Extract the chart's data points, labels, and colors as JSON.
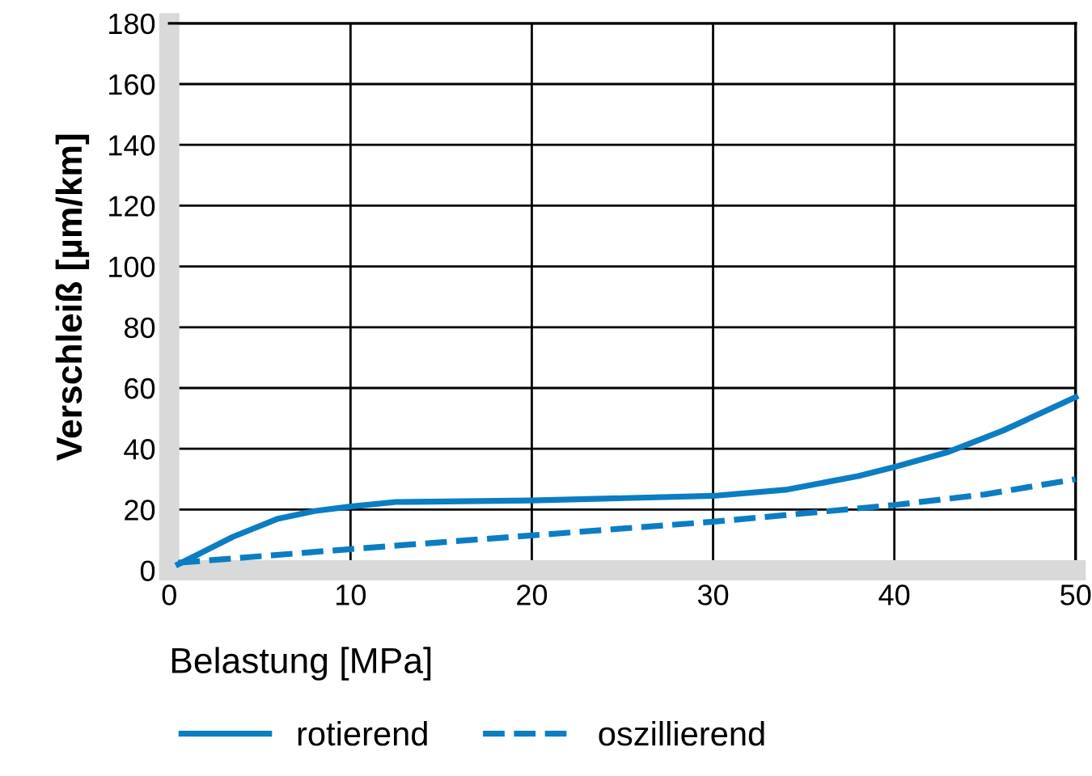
{
  "chart_data": {
    "type": "line",
    "xlabel": "Belastung [MPa]",
    "ylabel": "Verschleiß [µm/km]",
    "xlim": [
      0,
      50
    ],
    "ylim": [
      0,
      180
    ],
    "xticks": [
      0,
      10,
      20,
      30,
      40,
      50
    ],
    "yticks": [
      0,
      20,
      40,
      60,
      80,
      100,
      120,
      140,
      160,
      180
    ],
    "grid": true,
    "legend": "bottom",
    "marker": "none",
    "series": [
      {
        "name": "rotierend",
        "color": "#0b7dc3",
        "line_style": "solid",
        "x": [
          0.5,
          3.5,
          6,
          8,
          10,
          12.5,
          20,
          30,
          34,
          38,
          40,
          43,
          46,
          50
        ],
        "values": [
          2,
          11,
          17,
          19.5,
          21,
          22.5,
          23,
          24.5,
          26.5,
          31,
          34,
          39,
          46,
          57
        ]
      },
      {
        "name": "oszillierend",
        "color": "#0b7dc3",
        "line_style": "dashed",
        "x": [
          0.5,
          10,
          20,
          30,
          40,
          45,
          50
        ],
        "values": [
          2.5,
          7,
          11.5,
          16,
          21.5,
          25,
          30
        ]
      }
    ]
  }
}
